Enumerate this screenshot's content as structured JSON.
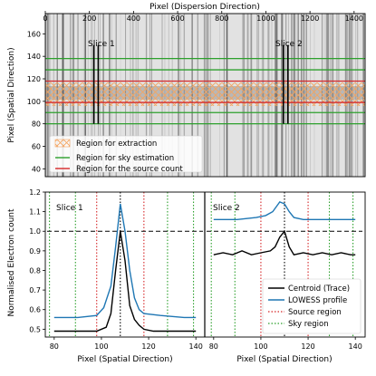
{
  "colors": {
    "extraction": "#f4a460",
    "sky": "#2ca02c",
    "source": "#d62728",
    "centroid": "#000000",
    "lowess": "#1f77b4",
    "zero_line": "#000000"
  },
  "top_panel": {
    "xlabel_top": "Pixel (Dispersion Direction)",
    "ylabel": "Pixel (Spatial Direction)",
    "x_ticks": [
      "0",
      "200",
      "400",
      "600",
      "800",
      "1000",
      "1200",
      "1400"
    ],
    "y_ticks": [
      "40",
      "60",
      "80",
      "100",
      "120",
      "140",
      "160"
    ],
    "slice1_label": "Slice 1",
    "slice2_label": "Slice 2",
    "legend": [
      {
        "label": "Region for extraction",
        "kind": "hatch"
      },
      {
        "label": "Region for sky estimation",
        "kind": "sky"
      },
      {
        "label": "Region for the source count",
        "kind": "source"
      }
    ]
  },
  "bottom_panel": {
    "ylabel": "Normalised Electron count",
    "left_label": "Slice 1",
    "right_label": "Slice 2",
    "xlabel": "Pixel (Spatial Direction)",
    "x_ticks": [
      "80",
      "100",
      "120",
      "140"
    ],
    "y_ticks": [
      "0.5",
      "0.6",
      "0.7",
      "0.8",
      "0.9",
      "1.0",
      "1.1",
      "1.2"
    ],
    "legend": [
      {
        "label": "Centroid (Trace)",
        "kind": "centroid"
      },
      {
        "label": "LOWESS profile",
        "kind": "lowess"
      },
      {
        "label": "Source region",
        "kind": "source"
      },
      {
        "label": "Sky region",
        "kind": "sky"
      }
    ]
  },
  "chart_data": [
    {
      "type": "heatmap",
      "description": "2D spectrum image with extraction, sky and source regions",
      "xlim": [
        0,
        1450
      ],
      "ylim": [
        33,
        178
      ],
      "sky_lines_y": [
        80,
        90,
        128,
        138
      ],
      "source_lines_y": [
        99,
        118
      ],
      "extraction_band_y": [
        90,
        128
      ],
      "trace_y": 109,
      "slice_markers_x": [
        {
          "slice": "Slice 1",
          "x": [
            220,
            240
          ]
        },
        {
          "slice": "Slice 2",
          "x": [
            1080,
            1100
          ]
        }
      ]
    },
    {
      "type": "line",
      "panel": "Slice 1",
      "xlim": [
        77,
        143
      ],
      "ylim": [
        0.46,
        1.2
      ],
      "centroid_x": 108,
      "source_region_x": [
        98,
        118
      ],
      "sky_region_x": [
        78,
        89,
        128,
        139
      ],
      "series": [
        {
          "name": "Centroid (Trace)",
          "points": [
            [
              80,
              0.49
            ],
            [
              86,
              0.49
            ],
            [
              92,
              0.49
            ],
            [
              98,
              0.49
            ],
            [
              102,
              0.51
            ],
            [
              104,
              0.58
            ],
            [
              106,
              0.8
            ],
            [
              108,
              1.0
            ],
            [
              110,
              0.85
            ],
            [
              112,
              0.62
            ],
            [
              114,
              0.55
            ],
            [
              116,
              0.52
            ],
            [
              118,
              0.5
            ],
            [
              122,
              0.49
            ],
            [
              130,
              0.49
            ],
            [
              136,
              0.49
            ],
            [
              140,
              0.49
            ]
          ]
        },
        {
          "name": "LOWESS profile",
          "points": [
            [
              80,
              0.56
            ],
            [
              90,
              0.56
            ],
            [
              98,
              0.57
            ],
            [
              101,
              0.61
            ],
            [
              104,
              0.72
            ],
            [
              106,
              0.92
            ],
            [
              108,
              1.14
            ],
            [
              110,
              1.0
            ],
            [
              112,
              0.8
            ],
            [
              114,
              0.66
            ],
            [
              116,
              0.6
            ],
            [
              118,
              0.58
            ],
            [
              125,
              0.57
            ],
            [
              135,
              0.56
            ],
            [
              140,
              0.56
            ]
          ]
        }
      ]
    },
    {
      "type": "line",
      "panel": "Slice 2",
      "xlim": [
        77,
        143
      ],
      "ylim": [
        0.46,
        1.2
      ],
      "centroid_x": 110,
      "source_region_x": [
        100,
        120
      ],
      "sky_region_x": [
        79,
        89,
        129,
        139
      ],
      "series": [
        {
          "name": "Centroid (Trace)",
          "points": [
            [
              80,
              0.88
            ],
            [
              84,
              0.89
            ],
            [
              88,
              0.88
            ],
            [
              92,
              0.9
            ],
            [
              96,
              0.88
            ],
            [
              100,
              0.89
            ],
            [
              104,
              0.9
            ],
            [
              106,
              0.92
            ],
            [
              108,
              0.97
            ],
            [
              110,
              1.0
            ],
            [
              112,
              0.92
            ],
            [
              114,
              0.88
            ],
            [
              118,
              0.89
            ],
            [
              122,
              0.88
            ],
            [
              126,
              0.89
            ],
            [
              130,
              0.88
            ],
            [
              134,
              0.89
            ],
            [
              138,
              0.88
            ],
            [
              140,
              0.88
            ]
          ]
        },
        {
          "name": "LOWESS profile",
          "points": [
            [
              80,
              1.06
            ],
            [
              90,
              1.06
            ],
            [
              98,
              1.07
            ],
            [
              102,
              1.08
            ],
            [
              105,
              1.1
            ],
            [
              108,
              1.15
            ],
            [
              110,
              1.14
            ],
            [
              112,
              1.1
            ],
            [
              114,
              1.07
            ],
            [
              118,
              1.06
            ],
            [
              125,
              1.06
            ],
            [
              135,
              1.06
            ],
            [
              140,
              1.06
            ]
          ]
        }
      ]
    }
  ]
}
